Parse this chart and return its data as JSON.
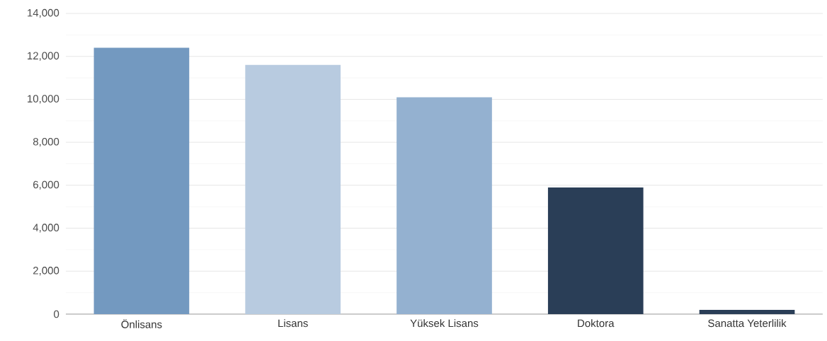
{
  "chart_data": {
    "type": "bar",
    "categories": [
      "Önlisans",
      "Lisans",
      "Yüksek Lisans",
      "Doktora",
      "Sanatta Yeterlilik"
    ],
    "values": [
      12400,
      11600,
      10100,
      5900,
      200
    ],
    "colors": [
      "#7399c0",
      "#b8cbe0",
      "#94b1d0",
      "#2a3e57",
      "#2a3e57"
    ],
    "ylim": [
      0,
      14000
    ],
    "yticks": [
      {
        "value": 0,
        "label": "0"
      },
      {
        "value": 2000,
        "label": "2,000"
      },
      {
        "value": 4000,
        "label": "4,000"
      },
      {
        "value": 6000,
        "label": "6,000"
      },
      {
        "value": 8000,
        "label": "8,000"
      },
      {
        "value": 10000,
        "label": "10,000"
      },
      {
        "value": 12000,
        "label": "12,000"
      },
      {
        "value": 14000,
        "label": "14,000"
      }
    ],
    "grid": "y"
  }
}
